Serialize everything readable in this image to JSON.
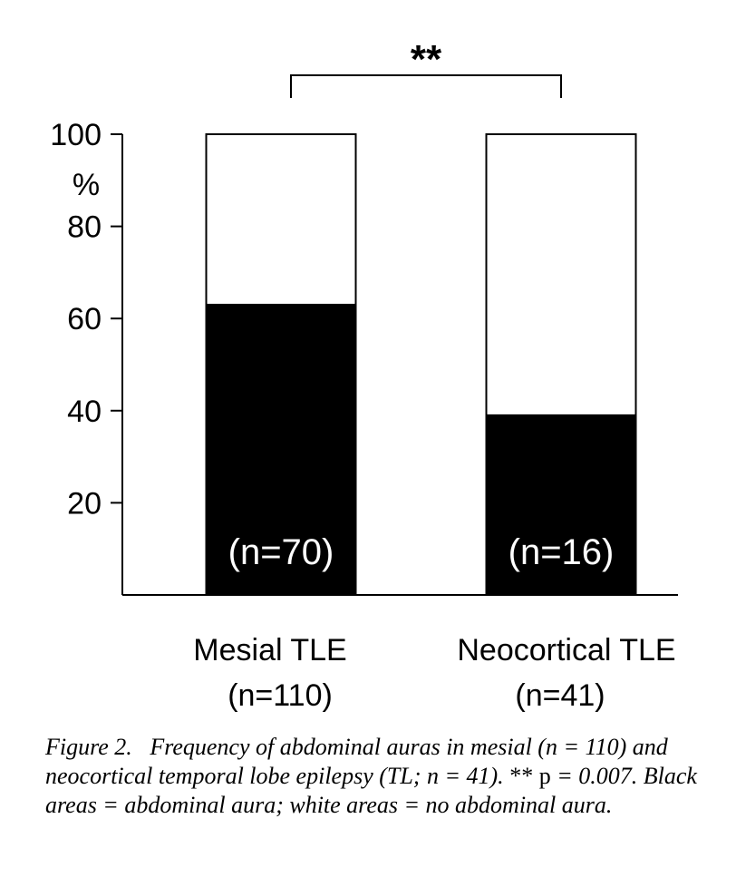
{
  "chart_data": {
    "type": "bar",
    "stacked": true,
    "categories": [
      "Mesial TLE",
      "Neocortical TLE"
    ],
    "category_counts": [
      "(n=110)",
      "(n=41)"
    ],
    "series": [
      {
        "name": "abdominal aura",
        "color": "#000000",
        "values": [
          63,
          39
        ],
        "bar_labels": [
          "(n=70)",
          "(n=16)"
        ]
      },
      {
        "name": "no abdominal aura",
        "color": "#ffffff",
        "values": [
          37,
          61
        ]
      }
    ],
    "ylabel": "%",
    "ylim": [
      0,
      100
    ],
    "yticks": [
      20,
      40,
      60,
      80,
      100
    ],
    "significance": {
      "between": [
        0,
        1
      ],
      "label": "**"
    }
  },
  "caption": {
    "figure_label": "Figure 2.",
    "text_before": "Frequency of abdominal auras in mesial (n = 110) and neocortical temporal lobe epilepsy (TL; n = 41).",
    "stars": "**",
    "p_text": "p",
    "text_after": "= 0.007. Black areas = abdominal aura; white areas = no abdominal aura."
  }
}
